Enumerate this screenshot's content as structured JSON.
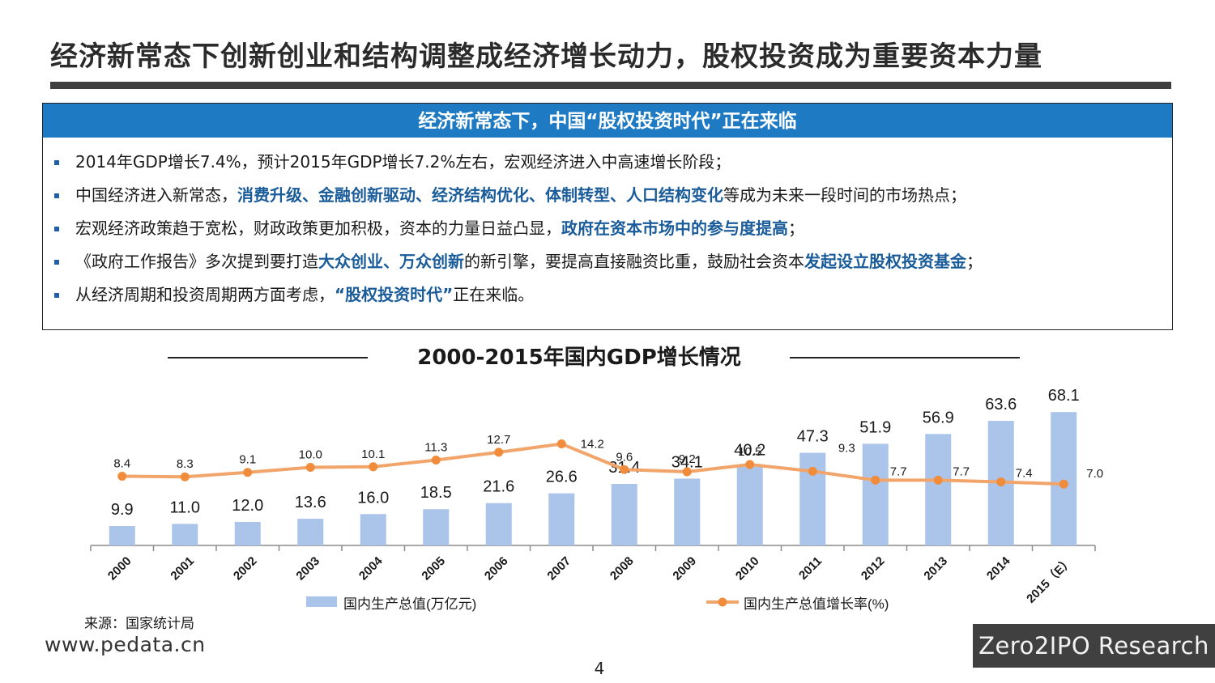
{
  "page": {
    "title": "经济新常态下创新创业和结构调整成经济增长动力，股权投资成为重要资本力量",
    "page_number": "4",
    "website": "www.pedata.cn",
    "brand": "Zero2IPO Research"
  },
  "info_box": {
    "header": "经济新常态下，中国“股权投资时代”正在来临",
    "bullets": [
      [
        {
          "t": "2014年GDP增长7.4%，预计2015年GDP增长7.2%左右，宏观经济进入中高速增长阶段；"
        }
      ],
      [
        {
          "t": "中国经济进入新常态，"
        },
        {
          "t": "消费升级、金融创新驱动、经济结构优化、体制转型、人口结构变化",
          "hl": true
        },
        {
          "t": "等成为未来一段时间的市场热点；"
        }
      ],
      [
        {
          "t": "宏观经济政策趋于宽松，财政政策更加积极，资本的力量日益凸显，"
        },
        {
          "t": "政府在资本市场中的参与度提高",
          "hl": true
        },
        {
          "t": "；"
        }
      ],
      [
        {
          "t": "《政府工作报告》多次提到要打造"
        },
        {
          "t": "大众创业、万众创新",
          "hl": true
        },
        {
          "t": "的新引擎，要提高直接融资比重，鼓励社会资本"
        },
        {
          "t": "发起设立股权投资基金",
          "hl": true
        },
        {
          "t": "；"
        }
      ],
      [
        {
          "t": "从经济周期和投资周期两方面考虑，"
        },
        {
          "t": "“股权投资时代”",
          "hl": true
        },
        {
          "t": "正在来临。"
        }
      ]
    ]
  },
  "source": "来源：国家统计局",
  "chart_data": {
    "type": "bar",
    "title": "2000-2015年国内GDP增长情况",
    "categories": [
      "2000",
      "2001",
      "2002",
      "2003",
      "2004",
      "2005",
      "2006",
      "2007",
      "2008",
      "2009",
      "2010",
      "2011",
      "2012",
      "2013",
      "2014",
      "2015（E）"
    ],
    "series": [
      {
        "name": "国内生产总值(万亿元)",
        "type": "bar",
        "values": [
          9.9,
          11.0,
          12.0,
          13.6,
          16.0,
          18.5,
          21.6,
          26.6,
          31.4,
          34.1,
          40.2,
          47.3,
          51.9,
          56.9,
          63.6,
          68.1
        ],
        "labels": [
          "9.9",
          "11.0",
          "12.0",
          "13.6",
          "16.0",
          "18.5",
          "21.6",
          "26.6",
          "31.4",
          "34.1",
          "40.2",
          "47.3",
          "51.9",
          "56.9",
          "63.6",
          "68.1"
        ]
      },
      {
        "name": "国内生产总值增长率(%)",
        "type": "line",
        "values": [
          8.4,
          8.3,
          9.1,
          10.0,
          10.1,
          11.3,
          12.7,
          14.2,
          9.6,
          9.2,
          10.5,
          9.3,
          7.7,
          7.7,
          7.4,
          7.0
        ],
        "labels": [
          "8.4",
          "8.3",
          "9.1",
          "10.0",
          "10.1",
          "11.3",
          "12.7",
          "14.2",
          "9.6",
          "9.2",
          "10.5",
          "9.3",
          "7.7",
          "7.7",
          "7.4",
          "7.0"
        ]
      }
    ],
    "legend": "bottom",
    "colors": {
      "bar": "#aac4ea",
      "line": "#f2a56a",
      "line_marker": "#f08c3c"
    }
  }
}
